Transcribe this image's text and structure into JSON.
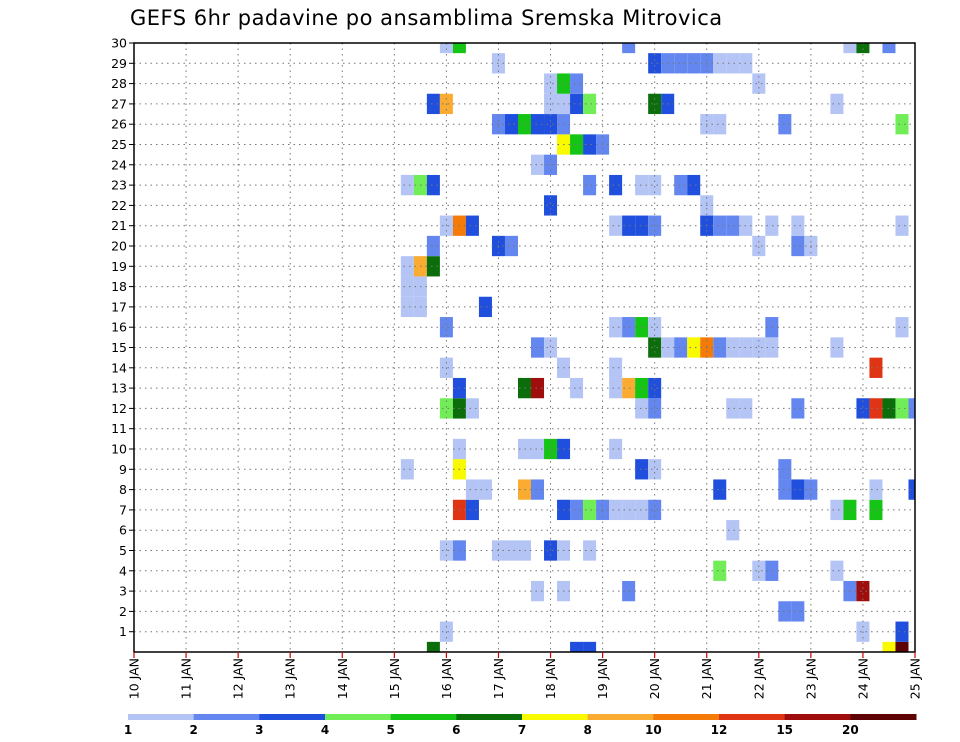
{
  "chart_data": {
    "type": "heatmap",
    "title": "GEFS 6hr padavine po ansamblima Sremska Mitrovica",
    "xlabel": "",
    "ylabel": "",
    "x_tick_labels": [
      "10 JAN",
      "11 JAN",
      "12 JAN",
      "13 JAN",
      "14 JAN",
      "15 JAN",
      "16 JAN",
      "17 JAN",
      "18 JAN",
      "19 JAN",
      "20 JAN",
      "21 JAN",
      "22 JAN",
      "23 JAN",
      "24 JAN",
      "25 JAN"
    ],
    "y_tick_labels": [
      "1",
      "2",
      "3",
      "4",
      "5",
      "6",
      "7",
      "8",
      "9",
      "10",
      "11",
      "12",
      "13",
      "14",
      "15",
      "16",
      "17",
      "18",
      "19",
      "20",
      "21",
      "22",
      "23",
      "24",
      "25",
      "26",
      "27",
      "28",
      "29",
      "30"
    ],
    "x_range_days": [
      0,
      15
    ],
    "time_step_hours": 6,
    "y_range": [
      0,
      30
    ],
    "grid": true,
    "legend_labels": [
      "1",
      "2",
      "3",
      "4",
      "5",
      "6",
      "7",
      "8",
      "10",
      "12",
      "15",
      "20"
    ],
    "color_scale": [
      "#b4c5f5",
      "#6387ef",
      "#1f4fdc",
      "#71ee57",
      "#16c415",
      "#0b6e0b",
      "#f9f900",
      "#f9ac31",
      "#f57b09",
      "#e03514",
      "#a00d0d",
      "#5e0303"
    ],
    "cells": [
      {
        "m": 0,
        "t": 23,
        "c": 5
      },
      {
        "m": 0,
        "t": 34,
        "c": 2
      },
      {
        "m": 0,
        "t": 35,
        "c": 2
      },
      {
        "m": 0,
        "t": 58,
        "c": 6
      },
      {
        "m": 0,
        "t": 59,
        "c": 11
      },
      {
        "m": 1,
        "t": 24,
        "c": 0
      },
      {
        "m": 1,
        "t": 56,
        "c": 0
      },
      {
        "m": 1,
        "t": 59,
        "c": 2
      },
      {
        "m": 2,
        "t": 50,
        "c": 1
      },
      {
        "m": 2,
        "t": 51,
        "c": 1
      },
      {
        "m": 3,
        "t": 31,
        "c": 0
      },
      {
        "m": 3,
        "t": 33,
        "c": 0
      },
      {
        "m": 3,
        "t": 38,
        "c": 1
      },
      {
        "m": 3,
        "t": 55,
        "c": 1
      },
      {
        "m": 3,
        "t": 56,
        "c": 10
      },
      {
        "m": 4,
        "t": 45,
        "c": 3
      },
      {
        "m": 4,
        "t": 48,
        "c": 0
      },
      {
        "m": 4,
        "t": 49,
        "c": 1
      },
      {
        "m": 4,
        "t": 54,
        "c": 0
      },
      {
        "m": 5,
        "t": 24,
        "c": 0
      },
      {
        "m": 5,
        "t": 25,
        "c": 1
      },
      {
        "m": 5,
        "t": 28,
        "c": 0
      },
      {
        "m": 5,
        "t": 29,
        "c": 0
      },
      {
        "m": 5,
        "t": 30,
        "c": 0
      },
      {
        "m": 5,
        "t": 32,
        "c": 2
      },
      {
        "m": 5,
        "t": 33,
        "c": 0
      },
      {
        "m": 5,
        "t": 35,
        "c": 0
      },
      {
        "m": 6,
        "t": 46,
        "c": 0
      },
      {
        "m": 7,
        "t": 25,
        "c": 9
      },
      {
        "m": 7,
        "t": 26,
        "c": 2
      },
      {
        "m": 7,
        "t": 33,
        "c": 2
      },
      {
        "m": 7,
        "t": 34,
        "c": 1
      },
      {
        "m": 7,
        "t": 35,
        "c": 3
      },
      {
        "m": 7,
        "t": 36,
        "c": 1
      },
      {
        "m": 7,
        "t": 37,
        "c": 0
      },
      {
        "m": 7,
        "t": 38,
        "c": 0
      },
      {
        "m": 7,
        "t": 39,
        "c": 0
      },
      {
        "m": 7,
        "t": 40,
        "c": 1
      },
      {
        "m": 7,
        "t": 54,
        "c": 0
      },
      {
        "m": 7,
        "t": 55,
        "c": 4
      },
      {
        "m": 7,
        "t": 57,
        "c": 4
      },
      {
        "m": 8,
        "t": 26,
        "c": 0
      },
      {
        "m": 8,
        "t": 27,
        "c": 0
      },
      {
        "m": 8,
        "t": 30,
        "c": 7
      },
      {
        "m": 8,
        "t": 31,
        "c": 1
      },
      {
        "m": 8,
        "t": 45,
        "c": 2
      },
      {
        "m": 8,
        "t": 50,
        "c": 1
      },
      {
        "m": 8,
        "t": 51,
        "c": 2
      },
      {
        "m": 8,
        "t": 52,
        "c": 1
      },
      {
        "m": 8,
        "t": 57,
        "c": 0
      },
      {
        "m": 8,
        "t": 60,
        "c": 2
      },
      {
        "m": 9,
        "t": 21,
        "c": 0
      },
      {
        "m": 9,
        "t": 25,
        "c": 6
      },
      {
        "m": 9,
        "t": 39,
        "c": 2
      },
      {
        "m": 9,
        "t": 40,
        "c": 0
      },
      {
        "m": 9,
        "t": 50,
        "c": 1
      },
      {
        "m": 10,
        "t": 25,
        "c": 0
      },
      {
        "m": 10,
        "t": 30,
        "c": 0
      },
      {
        "m": 10,
        "t": 31,
        "c": 0
      },
      {
        "m": 10,
        "t": 32,
        "c": 4
      },
      {
        "m": 10,
        "t": 33,
        "c": 2
      },
      {
        "m": 10,
        "t": 37,
        "c": 0
      },
      {
        "m": 12,
        "t": 24,
        "c": 3
      },
      {
        "m": 12,
        "t": 25,
        "c": 5
      },
      {
        "m": 12,
        "t": 26,
        "c": 0
      },
      {
        "m": 12,
        "t": 39,
        "c": 0
      },
      {
        "m": 12,
        "t": 40,
        "c": 1
      },
      {
        "m": 12,
        "t": 46,
        "c": 0
      },
      {
        "m": 12,
        "t": 47,
        "c": 0
      },
      {
        "m": 12,
        "t": 51,
        "c": 1
      },
      {
        "m": 12,
        "t": 56,
        "c": 2
      },
      {
        "m": 12,
        "t": 57,
        "c": 9
      },
      {
        "m": 12,
        "t": 58,
        "c": 5
      },
      {
        "m": 12,
        "t": 59,
        "c": 3
      },
      {
        "m": 12,
        "t": 60,
        "c": 1
      },
      {
        "m": 13,
        "t": 25,
        "c": 2
      },
      {
        "m": 13,
        "t": 30,
        "c": 5
      },
      {
        "m": 13,
        "t": 31,
        "c": 10
      },
      {
        "m": 13,
        "t": 34,
        "c": 0
      },
      {
        "m": 13,
        "t": 37,
        "c": 0
      },
      {
        "m": 13,
        "t": 38,
        "c": 7
      },
      {
        "m": 13,
        "t": 39,
        "c": 4
      },
      {
        "m": 13,
        "t": 40,
        "c": 2
      },
      {
        "m": 14,
        "t": 24,
        "c": 0
      },
      {
        "m": 14,
        "t": 33,
        "c": 0
      },
      {
        "m": 14,
        "t": 37,
        "c": 0
      },
      {
        "m": 14,
        "t": 57,
        "c": 9
      },
      {
        "m": 15,
        "t": 31,
        "c": 1
      },
      {
        "m": 15,
        "t": 32,
        "c": 0
      },
      {
        "m": 15,
        "t": 40,
        "c": 5
      },
      {
        "m": 15,
        "t": 41,
        "c": 0
      },
      {
        "m": 15,
        "t": 42,
        "c": 1
      },
      {
        "m": 15,
        "t": 43,
        "c": 6
      },
      {
        "m": 15,
        "t": 44,
        "c": 8
      },
      {
        "m": 15,
        "t": 45,
        "c": 1
      },
      {
        "m": 15,
        "t": 46,
        "c": 0
      },
      {
        "m": 15,
        "t": 47,
        "c": 0
      },
      {
        "m": 15,
        "t": 48,
        "c": 0
      },
      {
        "m": 15,
        "t": 49,
        "c": 0
      },
      {
        "m": 15,
        "t": 54,
        "c": 0
      },
      {
        "m": 16,
        "t": 24,
        "c": 1
      },
      {
        "m": 16,
        "t": 37,
        "c": 0
      },
      {
        "m": 16,
        "t": 38,
        "c": 1
      },
      {
        "m": 16,
        "t": 39,
        "c": 4
      },
      {
        "m": 16,
        "t": 40,
        "c": 0
      },
      {
        "m": 16,
        "t": 49,
        "c": 1
      },
      {
        "m": 16,
        "t": 59,
        "c": 0
      },
      {
        "m": 17,
        "t": 21,
        "c": 0
      },
      {
        "m": 17,
        "t": 22,
        "c": 0
      },
      {
        "m": 17,
        "t": 27,
        "c": 2
      },
      {
        "m": 18,
        "t": 21,
        "c": 0
      },
      {
        "m": 18,
        "t": 22,
        "c": 0
      },
      {
        "m": 19,
        "t": 21,
        "c": 0
      },
      {
        "m": 19,
        "t": 22,
        "c": 7
      },
      {
        "m": 19,
        "t": 23,
        "c": 5
      },
      {
        "m": 20,
        "t": 23,
        "c": 1
      },
      {
        "m": 20,
        "t": 28,
        "c": 2
      },
      {
        "m": 20,
        "t": 29,
        "c": 1
      },
      {
        "m": 20,
        "t": 48,
        "c": 0
      },
      {
        "m": 20,
        "t": 51,
        "c": 1
      },
      {
        "m": 20,
        "t": 52,
        "c": 0
      },
      {
        "m": 21,
        "t": 24,
        "c": 0
      },
      {
        "m": 21,
        "t": 25,
        "c": 8
      },
      {
        "m": 21,
        "t": 26,
        "c": 2
      },
      {
        "m": 21,
        "t": 37,
        "c": 0
      },
      {
        "m": 21,
        "t": 38,
        "c": 2
      },
      {
        "m": 21,
        "t": 39,
        "c": 2
      },
      {
        "m": 21,
        "t": 40,
        "c": 1
      },
      {
        "m": 21,
        "t": 44,
        "c": 2
      },
      {
        "m": 21,
        "t": 45,
        "c": 1
      },
      {
        "m": 21,
        "t": 46,
        "c": 1
      },
      {
        "m": 21,
        "t": 47,
        "c": 0
      },
      {
        "m": 21,
        "t": 49,
        "c": 0
      },
      {
        "m": 21,
        "t": 51,
        "c": 0
      },
      {
        "m": 21,
        "t": 59,
        "c": 0
      },
      {
        "m": 22,
        "t": 32,
        "c": 2
      },
      {
        "m": 22,
        "t": 44,
        "c": 0
      },
      {
        "m": 23,
        "t": 21,
        "c": 0
      },
      {
        "m": 23,
        "t": 22,
        "c": 3
      },
      {
        "m": 23,
        "t": 23,
        "c": 2
      },
      {
        "m": 23,
        "t": 35,
        "c": 1
      },
      {
        "m": 23,
        "t": 37,
        "c": 2
      },
      {
        "m": 23,
        "t": 39,
        "c": 0
      },
      {
        "m": 23,
        "t": 40,
        "c": 0
      },
      {
        "m": 23,
        "t": 42,
        "c": 1
      },
      {
        "m": 23,
        "t": 43,
        "c": 2
      },
      {
        "m": 24,
        "t": 31,
        "c": 0
      },
      {
        "m": 24,
        "t": 32,
        "c": 1
      },
      {
        "m": 25,
        "t": 33,
        "c": 6
      },
      {
        "m": 25,
        "t": 34,
        "c": 4
      },
      {
        "m": 25,
        "t": 35,
        "c": 2
      },
      {
        "m": 25,
        "t": 36,
        "c": 1
      },
      {
        "m": 26,
        "t": 28,
        "c": 1
      },
      {
        "m": 26,
        "t": 29,
        "c": 2
      },
      {
        "m": 26,
        "t": 30,
        "c": 4
      },
      {
        "m": 26,
        "t": 31,
        "c": 2
      },
      {
        "m": 26,
        "t": 32,
        "c": 2
      },
      {
        "m": 26,
        "t": 33,
        "c": 1
      },
      {
        "m": 26,
        "t": 44,
        "c": 0
      },
      {
        "m": 26,
        "t": 45,
        "c": 0
      },
      {
        "m": 26,
        "t": 50,
        "c": 1
      },
      {
        "m": 26,
        "t": 59,
        "c": 3
      },
      {
        "m": 27,
        "t": 23,
        "c": 2
      },
      {
        "m": 27,
        "t": 24,
        "c": 7
      },
      {
        "m": 27,
        "t": 32,
        "c": 0
      },
      {
        "m": 27,
        "t": 33,
        "c": 0
      },
      {
        "m": 27,
        "t": 34,
        "c": 2
      },
      {
        "m": 27,
        "t": 35,
        "c": 3
      },
      {
        "m": 27,
        "t": 40,
        "c": 5
      },
      {
        "m": 27,
        "t": 41,
        "c": 2
      },
      {
        "m": 27,
        "t": 54,
        "c": 0
      },
      {
        "m": 28,
        "t": 32,
        "c": 0
      },
      {
        "m": 28,
        "t": 33,
        "c": 4
      },
      {
        "m": 28,
        "t": 34,
        "c": 1
      },
      {
        "m": 28,
        "t": 48,
        "c": 0
      },
      {
        "m": 29,
        "t": 28,
        "c": 0
      },
      {
        "m": 29,
        "t": 40,
        "c": 2
      },
      {
        "m": 29,
        "t": 41,
        "c": 1
      },
      {
        "m": 29,
        "t": 42,
        "c": 1
      },
      {
        "m": 29,
        "t": 43,
        "c": 1
      },
      {
        "m": 29,
        "t": 44,
        "c": 1
      },
      {
        "m": 29,
        "t": 45,
        "c": 0
      },
      {
        "m": 29,
        "t": 46,
        "c": 0
      },
      {
        "m": 29,
        "t": 47,
        "c": 0
      },
      {
        "m": 30,
        "t": 24,
        "c": 0
      },
      {
        "m": 30,
        "t": 25,
        "c": 4
      },
      {
        "m": 30,
        "t": 38,
        "c": 1
      },
      {
        "m": 30,
        "t": 55,
        "c": 0
      },
      {
        "m": 30,
        "t": 56,
        "c": 5
      },
      {
        "m": 30,
        "t": 58,
        "c": 1
      }
    ]
  }
}
